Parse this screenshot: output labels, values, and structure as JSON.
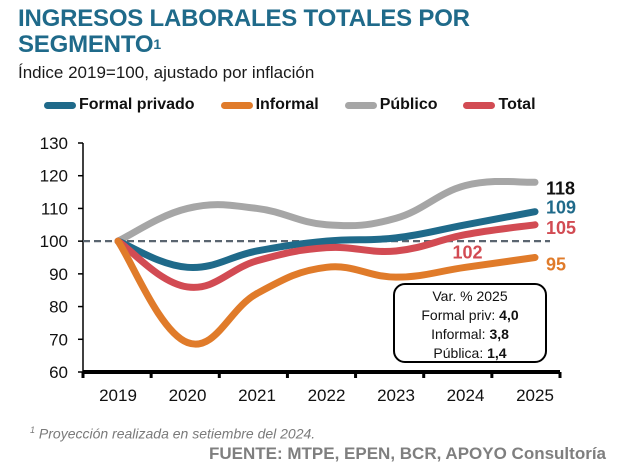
{
  "header": {
    "title": "INGRESOS LABORALES TOTALES POR SEGMENTO",
    "title_superscript": "1",
    "subtitle": "Índice 2019=100, ajustado por inflación"
  },
  "chart_data": {
    "type": "line",
    "title": "INGRESOS LABORALES TOTALES POR SEGMENTO",
    "subtitle": "Índice 2019=100, ajustado por inflación",
    "xlabel": "",
    "ylabel": "",
    "categories": [
      "2019",
      "2020",
      "2021",
      "2022",
      "2023",
      "2024",
      "2025"
    ],
    "ylim": [
      60,
      130
    ],
    "yticks": [
      60,
      70,
      80,
      90,
      100,
      110,
      120,
      130
    ],
    "grid": false,
    "reference_line": {
      "value": 100,
      "style": "dashed",
      "color": "#5a6570"
    },
    "legend_position": "top",
    "series": [
      {
        "name": "Formal privado",
        "color": "#1f6a8a",
        "values": [
          100,
          92,
          97,
          100,
          101,
          105,
          109
        ],
        "end_label": "109",
        "end_label_color": "#1f6a8a"
      },
      {
        "name": "Informal",
        "color": "#e07b2a",
        "values": [
          100,
          69,
          84,
          92,
          89,
          92,
          95
        ],
        "end_label": "95",
        "end_label_color": "#e07b2a"
      },
      {
        "name": "Público",
        "color": "#a6a6a6",
        "values": [
          100,
          110,
          110,
          105,
          107,
          117,
          118
        ],
        "end_label": "118",
        "end_label_color": "#111111"
      },
      {
        "name": "Total",
        "color": "#d24b53",
        "values": [
          100,
          86,
          94,
          98,
          97,
          102,
          105
        ],
        "end_label": "105",
        "end_label_color": "#d24b53"
      }
    ],
    "annotations": [
      {
        "text": "102",
        "x": "2024",
        "y": 102,
        "color": "#d24b53"
      }
    ]
  },
  "annotation_box": {
    "title": "Var. % 2025",
    "rows": [
      {
        "label": "Formal priv:",
        "value": "4,0"
      },
      {
        "label": "Informal:",
        "value": "3,8"
      },
      {
        "label": "Pública:",
        "value": "1,4"
      }
    ]
  },
  "footer": {
    "footnote_marker": "1",
    "footnote": "Proyección realizada en setiembre del 2024.",
    "source": "FUENTE:  MTPE, EPEN, BCR, APOYO Consultoría"
  }
}
